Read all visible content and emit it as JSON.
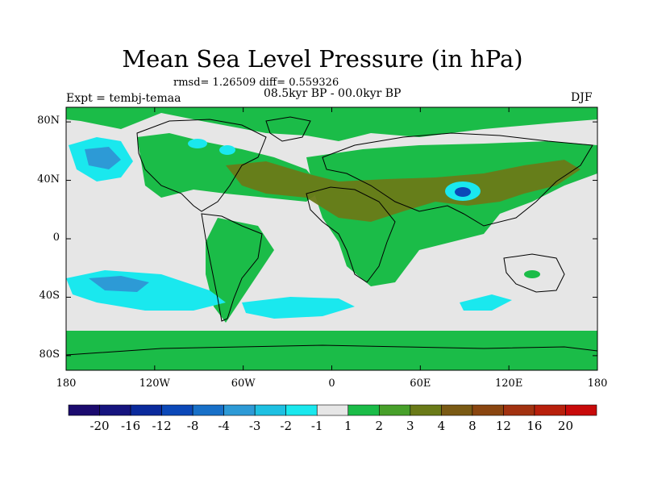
{
  "title": "Mean Sea Level Pressure (in hPa)",
  "stats": "rmsd= 1.26509 diff= 0.559326",
  "period": "08.5kyr BP - 00.0kyr BP",
  "experiment": "Expt = tembj-temaa",
  "season": "DJF",
  "map": {
    "lat_labels": [
      "80N",
      "40N",
      "0",
      "40S",
      "80S"
    ],
    "lat_values": [
      80,
      40,
      0,
      -40,
      -80
    ],
    "lon_labels": [
      "180",
      "120W",
      "60W",
      "0",
      "60E",
      "120E",
      "180"
    ],
    "lon_values": [
      -180,
      -120,
      -60,
      0,
      60,
      120,
      180
    ]
  },
  "colorbar": {
    "colors": [
      "#1b0a6e",
      "#16147e",
      "#0a2a9c",
      "#0b48b8",
      "#1870c8",
      "#2d9ad6",
      "#1ec0e2",
      "#1ae8ee",
      "#e6e6e6",
      "#1bbc48",
      "#47a02a",
      "#6a7a18",
      "#7a5a14",
      "#8a4610",
      "#a23210",
      "#b8200c",
      "#c80a0a"
    ],
    "labels": [
      "-20",
      "-16",
      "-12",
      "-8",
      "-4",
      "-3",
      "-2",
      "-1",
      "1",
      "2",
      "3",
      "4",
      "8",
      "12",
      "16",
      "20"
    ]
  }
}
